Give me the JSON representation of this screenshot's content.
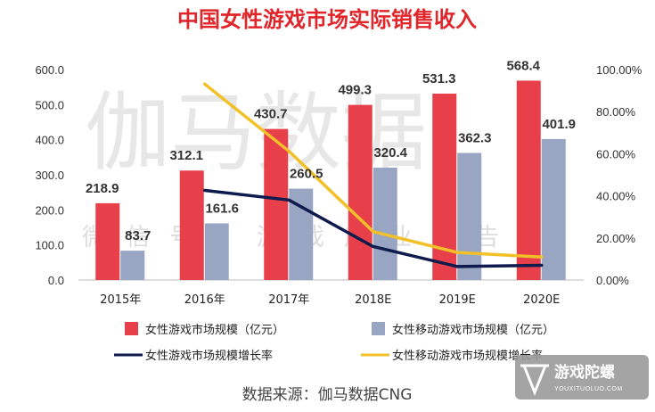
{
  "watermark": {
    "main": "伽马数据",
    "sub": "微信号：游戏产业报告"
  },
  "source": "数据来源：伽马数据CNG",
  "logo": {
    "name": "游戏陀螺",
    "url_text": "YOUXITUOLUO.COM"
  },
  "colors": {
    "title": "#e0252b",
    "bar_female": "#e8404a",
    "bar_mobile": "#98a6c4",
    "line_female": "#0f1a4d",
    "line_mobile": "#f2c029",
    "logo_bg": "#9a9a9a"
  },
  "chart_data": {
    "type": "bar",
    "title": "中国女性游戏市场实际销售收入",
    "categories": [
      "2015年",
      "2016年",
      "2017年",
      "2018E",
      "2019E",
      "2020E"
    ],
    "y_left": {
      "min": 0,
      "max": 600,
      "ticks": [
        "0.0",
        "100.0",
        "200.0",
        "300.0",
        "400.0",
        "500.0",
        "600.0"
      ]
    },
    "y_right": {
      "min": 0,
      "max": 100,
      "ticks": [
        "0.00%",
        "20.00%",
        "40.00%",
        "60.00%",
        "80.00%",
        "100.00%"
      ]
    },
    "series": [
      {
        "name": "女性游戏市场规模（亿元）",
        "kind": "bar",
        "axis": "left",
        "values": [
          218.9,
          312.1,
          430.7,
          499.3,
          531.3,
          568.4
        ],
        "labels": [
          "218.9",
          "312.1",
          "430.7",
          "499.3",
          "531.3",
          "568.4"
        ]
      },
      {
        "name": "女性移动游戏市场规模（亿元）",
        "kind": "bar",
        "axis": "left",
        "values": [
          83.7,
          161.6,
          260.5,
          320.4,
          362.3,
          401.9
        ],
        "labels": [
          "83.7",
          "161.6",
          "260.5",
          "320.4",
          "362.3",
          "401.9"
        ]
      },
      {
        "name": "女性游戏市场规模增长率",
        "kind": "line",
        "axis": "right",
        "values": [
          null,
          42.6,
          38.0,
          15.9,
          6.4,
          7.0
        ]
      },
      {
        "name": "女性移动游戏市场规模增长率",
        "kind": "line",
        "axis": "right",
        "values": [
          null,
          93.1,
          61.2,
          23.0,
          13.1,
          10.9
        ]
      }
    ],
    "legend_position": "bottom",
    "grid": false
  }
}
